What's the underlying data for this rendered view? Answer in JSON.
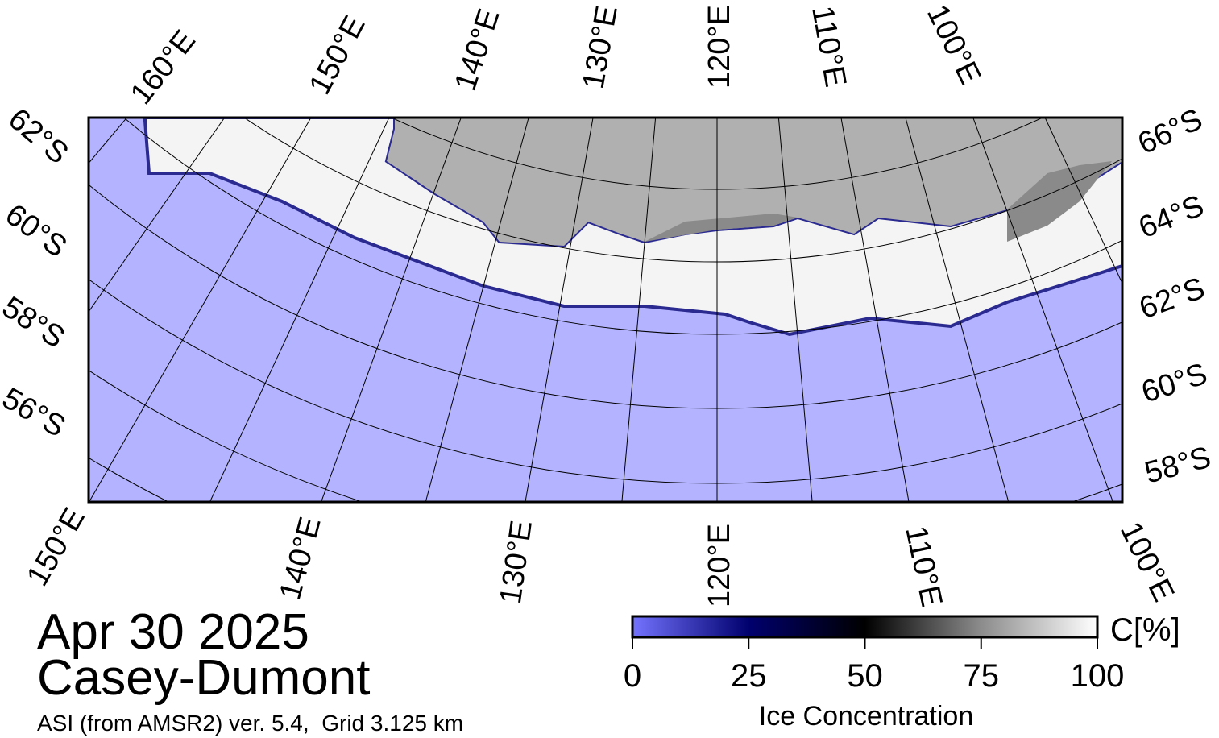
{
  "header": {
    "date": "Apr 30 2025",
    "region": "Casey-Dumont",
    "subtitle": "ASI (from AMSR2) ver. 5.4,  Grid 3.125 km"
  },
  "map": {
    "top_labels": [
      "160°E",
      "150°E",
      "140°E",
      "130°E",
      "120°E",
      "110°E",
      "100°E"
    ],
    "bottom_labels": [
      "150°E",
      "140°E",
      "130°E",
      "120°E",
      "110°E",
      "100°E"
    ],
    "left_labels": [
      "62°S",
      "60°S",
      "58°S",
      "56°S"
    ],
    "right_labels": [
      "66°S",
      "64°S",
      "62°S",
      "60°S",
      "58°S"
    ]
  },
  "colorbar": {
    "title": "Ice Concentration",
    "unit": "C[%]",
    "lim": [
      0,
      100
    ],
    "ticks": [
      0,
      25,
      50,
      75,
      100
    ],
    "colors": [
      "#7373ff",
      "#00006e",
      "#000000",
      "#8c8c8c",
      "#ffffff"
    ]
  }
}
